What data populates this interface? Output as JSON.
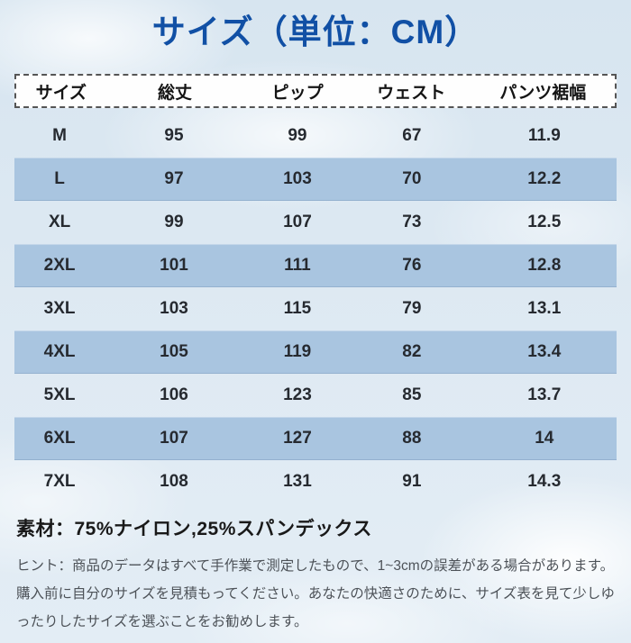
{
  "title": "サイズ（単位：CM）",
  "chart_data": {
    "type": "table",
    "title": "サイズ（単位：CM）",
    "unit": "CM",
    "columns": [
      "サイズ",
      "総丈",
      "ピップ",
      "ウェスト",
      "パンツ裾幅"
    ],
    "rows": [
      [
        "M",
        "95",
        "99",
        "67",
        "11.9"
      ],
      [
        "L",
        "97",
        "103",
        "70",
        "12.2"
      ],
      [
        "XL",
        "99",
        "107",
        "73",
        "12.5"
      ],
      [
        "2XL",
        "101",
        "111",
        "76",
        "12.8"
      ],
      [
        "3XL",
        "103",
        "115",
        "79",
        "13.1"
      ],
      [
        "4XL",
        "105",
        "119",
        "82",
        "13.4"
      ],
      [
        "5XL",
        "106",
        "123",
        "85",
        "13.7"
      ],
      [
        "6XL",
        "107",
        "127",
        "88",
        "14"
      ],
      [
        "7XL",
        "108",
        "131",
        "91",
        "14.3"
      ]
    ]
  },
  "material": "素材：75%ナイロン,25%スパンデックス",
  "hint": "ヒント：商品のデータはすべて手作業で測定したもので、1~3cmの誤差がある場合があります。購入前に自分のサイズを見積もってください。あなたの快適さのために、サイズ表を見て少しゆったりしたサイズを選ぶことをお勧めします。",
  "colors": {
    "title_text": "#1150a5",
    "band": "#a9c5e0",
    "header_bg": "#fefefe",
    "background": "#dce9f2"
  }
}
